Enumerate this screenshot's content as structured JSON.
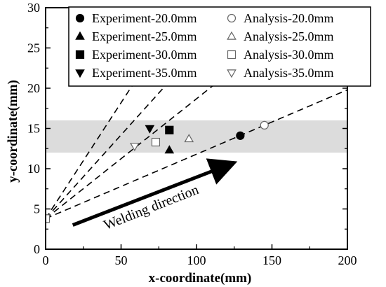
{
  "chart_data": {
    "type": "scatter",
    "title": "",
    "xlabel": "x-coordinate(mm)",
    "ylabel": "y-coordinate(mm)",
    "xlim": [
      0,
      200
    ],
    "ylim": [
      0,
      30
    ],
    "xticks": [
      0,
      50,
      100,
      150,
      200
    ],
    "yticks": [
      0,
      5,
      10,
      15,
      20,
      25,
      30
    ],
    "grid": false,
    "legend_position": "top",
    "shaded_band": {
      "y_range": [
        12.0,
        16.0
      ],
      "color": "#dcdcdc"
    },
    "reference_lines": [
      {
        "from": [
          0,
          3.8
        ],
        "to": [
          200,
          19.8
        ],
        "style": "dashed"
      },
      {
        "from": [
          0,
          3.8
        ],
        "to": [
          176,
          30
        ],
        "style": "dashed"
      },
      {
        "from": [
          0,
          3.8
        ],
        "to": [
          126,
          30
        ],
        "style": "dashed"
      },
      {
        "from": [
          0,
          3.8
        ],
        "to": [
          91,
          30
        ],
        "style": "dashed"
      }
    ],
    "series": [
      {
        "name": "Experiment-20.0mm",
        "marker": "circle",
        "filled": true,
        "points": [
          [
            129,
            14.1
          ]
        ]
      },
      {
        "name": "Analysis-20.0mm",
        "marker": "circle",
        "filled": false,
        "points": [
          [
            145,
            15.4
          ]
        ]
      },
      {
        "name": "Experiment-25.0mm",
        "marker": "triangle-up",
        "filled": true,
        "points": [
          [
            82,
            12.3
          ]
        ]
      },
      {
        "name": "Analysis-25.0mm",
        "marker": "triangle-up",
        "filled": false,
        "points": [
          [
            95,
            13.7
          ]
        ]
      },
      {
        "name": "Experiment-30.0mm",
        "marker": "square",
        "filled": true,
        "points": [
          [
            82,
            14.8
          ]
        ]
      },
      {
        "name": "Analysis-30.0mm",
        "marker": "square",
        "filled": false,
        "points": [
          [
            73,
            13.3
          ]
        ]
      },
      {
        "name": "Experiment-35.0mm",
        "marker": "triangle-down",
        "filled": true,
        "points": [
          [
            69,
            15.0
          ]
        ]
      },
      {
        "name": "Analysis-35.0mm",
        "marker": "triangle-down",
        "filled": false,
        "points": [
          [
            59,
            12.8
          ]
        ]
      }
    ],
    "origin_marker": {
      "marker": "square",
      "filled": false,
      "point": [
        0,
        3.8
      ]
    },
    "annotation": {
      "text": "Welding direction",
      "arrow_from": [
        18,
        3.0
      ],
      "arrow_to": [
        124,
        10.8
      ]
    },
    "legend_columns": [
      [
        "Experiment-20.0mm",
        "Experiment-25.0mm",
        "Experiment-30.0mm",
        "Experiment-35.0mm"
      ],
      [
        "Analysis-20.0mm",
        "Analysis-25.0mm",
        "Analysis-30.0mm",
        "Analysis-35.0mm"
      ]
    ]
  }
}
